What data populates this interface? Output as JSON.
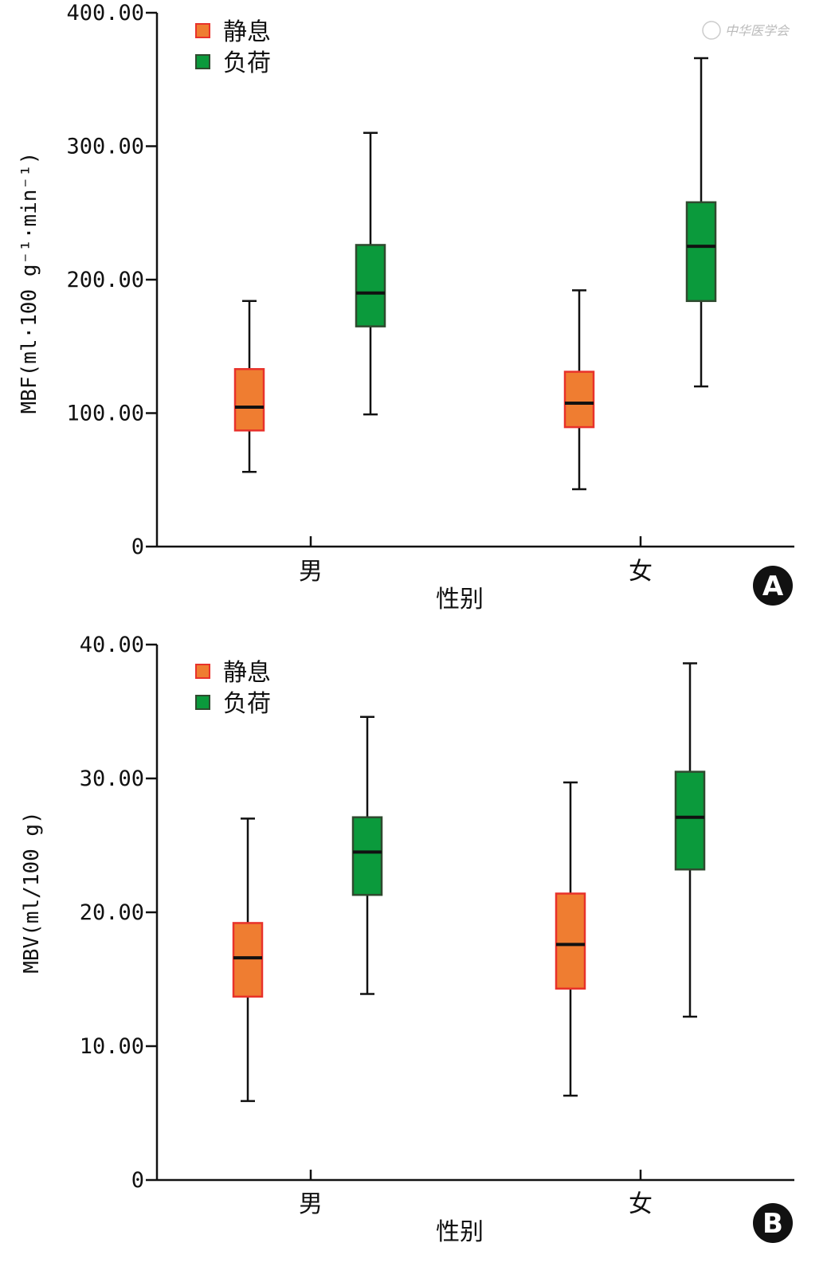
{
  "watermark": "中华医学会",
  "colors": {
    "rest_fill": "#ef7d31",
    "rest_stroke": "#e8322b",
    "load_fill": "#0b9a3c",
    "load_stroke": "#2f4a2f",
    "median": "#111111"
  },
  "chart_data": [
    {
      "type": "box",
      "panel_label": "A",
      "ylabel": "MBF(ml·100 g⁻¹·min⁻¹)",
      "xlabel": "性别",
      "categories": [
        "男",
        "女"
      ],
      "ylim": [
        0,
        400
      ],
      "yticks": [
        0,
        100,
        200,
        300,
        400
      ],
      "ytick_labels": [
        "0",
        "100.00",
        "200.00",
        "300.00",
        "400.00"
      ],
      "legend": {
        "position": "top-left",
        "entries": [
          "静息",
          "负荷"
        ]
      },
      "series": [
        {
          "name": "静息",
          "boxes": [
            {
              "min": 56,
              "q1": 87,
              "median": 104.5,
              "q3": 133,
              "max": 184
            },
            {
              "min": 43,
              "q1": 89.5,
              "median": 107.5,
              "q3": 131,
              "max": 192
            }
          ]
        },
        {
          "name": "负荷",
          "boxes": [
            {
              "min": 99,
              "q1": 165,
              "median": 190,
              "q3": 226,
              "max": 310
            },
            {
              "min": 120,
              "q1": 184,
              "median": 225,
              "q3": 258,
              "max": 366
            }
          ]
        }
      ]
    },
    {
      "type": "box",
      "panel_label": "B",
      "ylabel": "MBV(ml/100 g)",
      "xlabel": "性别",
      "categories": [
        "男",
        "女"
      ],
      "ylim": [
        0,
        40
      ],
      "yticks": [
        0,
        10,
        20,
        30,
        40
      ],
      "ytick_labels": [
        "0",
        "10.00",
        "20.00",
        "30.00",
        "40.00"
      ],
      "legend": {
        "position": "top-left",
        "entries": [
          "静息",
          "负荷"
        ]
      },
      "series": [
        {
          "name": "静息",
          "boxes": [
            {
              "min": 5.9,
              "q1": 13.7,
              "median": 16.6,
              "q3": 19.2,
              "max": 27.0
            },
            {
              "min": 6.3,
              "q1": 14.3,
              "median": 17.6,
              "q3": 21.4,
              "max": 29.7
            }
          ]
        },
        {
          "name": "负荷",
          "boxes": [
            {
              "min": 13.9,
              "q1": 21.3,
              "median": 24.5,
              "q3": 27.1,
              "max": 34.6
            },
            {
              "min": 12.2,
              "q1": 23.2,
              "median": 27.1,
              "q3": 30.5,
              "max": 38.6
            }
          ]
        }
      ]
    }
  ]
}
